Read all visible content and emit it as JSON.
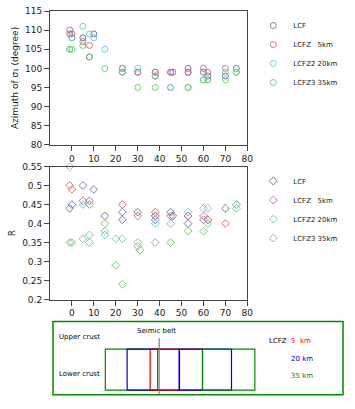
{
  "chart_data": [
    {
      "type": "scatter",
      "ylabel": "Azimuth of σ₁ (degree)",
      "marker": "circle",
      "legend": "upper right",
      "grid": false,
      "xlim": [
        -10,
        80
      ],
      "ylim": [
        80,
        115
      ],
      "xticks": [
        0,
        10,
        20,
        30,
        40,
        50,
        60,
        70,
        80
      ],
      "yticks": [
        80,
        85,
        90,
        95,
        100,
        105,
        110,
        115
      ],
      "series": [
        {
          "name": "LCF",
          "color": "#7777bb",
          "x": [
            -1,
            0,
            5,
            8,
            10,
            23,
            23,
            30,
            38,
            38,
            45,
            46,
            53,
            53,
            60,
            62,
            70,
            75
          ],
          "values": [
            109,
            108,
            108,
            103,
            109,
            99,
            100,
            99,
            98,
            99,
            99,
            99,
            99,
            100,
            99,
            98,
            98,
            100
          ]
        },
        {
          "name": "LCFZ   5km",
          "color": "#cc7777",
          "x": [
            -1,
            0,
            5,
            8,
            23,
            30,
            38,
            38,
            45,
            53,
            60,
            62,
            70
          ],
          "values": [
            110,
            109,
            107,
            106,
            100,
            99,
            99,
            98,
            99,
            99,
            100,
            99,
            100
          ]
        },
        {
          "name": "LCFZ2 20km",
          "color": "#77cccc",
          "x": [
            -1,
            0,
            5,
            8,
            10,
            15,
            23,
            30,
            38,
            45,
            53,
            60,
            62,
            70,
            75
          ],
          "values": [
            105,
            108,
            111,
            109,
            108,
            105,
            100,
            100,
            98,
            95,
            95,
            97,
            97,
            99,
            99
          ]
        },
        {
          "name": "LCFZ3 35km",
          "color": "#77cc77",
          "x": [
            -1,
            0,
            5,
            8,
            15,
            23,
            30,
            38,
            45,
            53,
            60,
            62,
            70,
            75
          ],
          "values": [
            105,
            105,
            106,
            103,
            100,
            99,
            95,
            95,
            95,
            95,
            97,
            97,
            97,
            99
          ]
        }
      ]
    },
    {
      "type": "scatter",
      "ylabel": "R",
      "marker": "diamond",
      "legend": "upper right",
      "grid": false,
      "xlim": [
        -10,
        80
      ],
      "ylim": [
        0.2,
        0.55
      ],
      "xticks": [
        0,
        10,
        20,
        30,
        40,
        50,
        60,
        70,
        80
      ],
      "yticks": [
        0.2,
        0.25,
        0.3,
        0.35,
        0.4,
        0.45,
        0.5,
        0.55
      ],
      "series": [
        {
          "name": "LCF",
          "color": "#7777bb",
          "x": [
            -1,
            0,
            5,
            8,
            10,
            15,
            23,
            23,
            30,
            38,
            38,
            45,
            46,
            53,
            53,
            60,
            62,
            70,
            75
          ],
          "values": [
            0.44,
            0.45,
            0.5,
            0.46,
            0.49,
            0.42,
            0.43,
            0.41,
            0.43,
            0.42,
            0.41,
            0.43,
            0.42,
            0.42,
            0.4,
            0.41,
            0.41,
            0.44,
            0.45
          ]
        },
        {
          "name": "LCFZ   5km",
          "color": "#cc7777",
          "x": [
            -1,
            0,
            5,
            8,
            23,
            30,
            38,
            38,
            45,
            53,
            60,
            62,
            70
          ],
          "values": [
            0.5,
            0.49,
            0.46,
            0.45,
            0.45,
            0.42,
            0.43,
            0.42,
            0.42,
            0.42,
            0.42,
            0.41,
            0.4
          ]
        },
        {
          "name": "LCFZ2 20km",
          "color": "#77cccc",
          "x": [
            -1,
            5,
            8,
            15,
            15,
            20,
            23,
            30,
            38,
            45,
            53,
            60,
            62,
            70,
            75
          ],
          "values": [
            0.55,
            0.45,
            0.37,
            0.38,
            0.37,
            0.36,
            0.36,
            0.35,
            0.4,
            0.4,
            0.43,
            0.44,
            0.44,
            0.44,
            0.45
          ]
        },
        {
          "name": "LCFZ3 35km",
          "color": "#77cc77",
          "x": [
            -1,
            0,
            5,
            8,
            15,
            20,
            23,
            30,
            31,
            38,
            45,
            53,
            60,
            62,
            70,
            75
          ],
          "values": [
            0.35,
            0.35,
            0.36,
            0.35,
            0.4,
            0.29,
            0.24,
            0.34,
            0.33,
            0.35,
            0.35,
            0.38,
            0.38,
            0.4,
            0.44,
            0.44
          ]
        }
      ]
    },
    {
      "type": "diagram",
      "color": "#008800",
      "colors": [
        "#008800",
        "#0000cc",
        "#cc0000",
        "#0000cc",
        "#008800"
      ],
      "annotations": [
        {
          "text": "Upper crust"
        },
        {
          "text": "Lower crust"
        },
        {
          "text": "Seimic belt"
        },
        {
          "text": "LCFZ"
        },
        {
          "text": "5  km",
          "color": "red"
        },
        {
          "text": "20 km",
          "color": "blue"
        },
        {
          "text": "35 km",
          "color": "#008800"
        }
      ]
    }
  ]
}
